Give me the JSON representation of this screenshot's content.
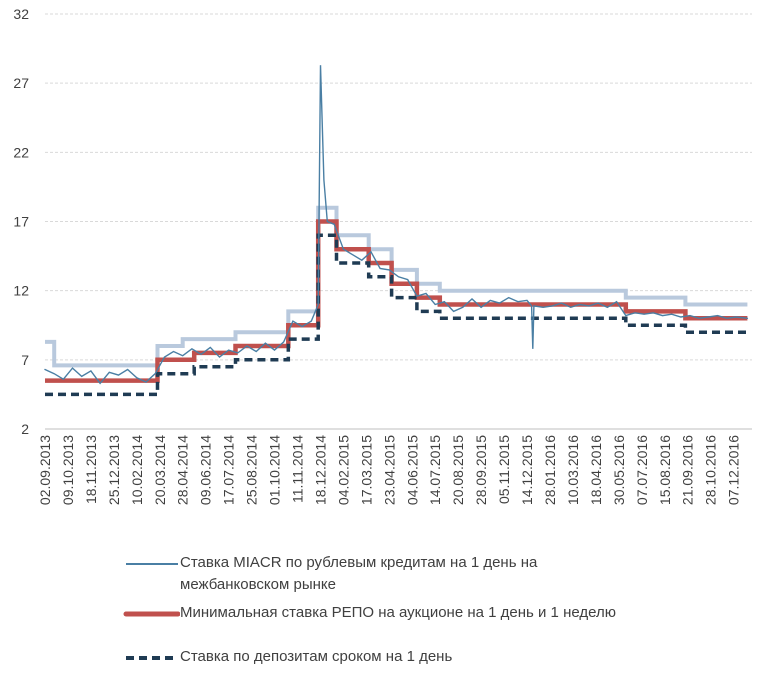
{
  "chart_data": {
    "type": "line",
    "title": "",
    "xlabel": "",
    "ylabel": "",
    "ylim": [
      2,
      32
    ],
    "yticks": [
      2,
      7,
      12,
      17,
      22,
      27,
      32
    ],
    "grid": true,
    "legend_position": "bottom",
    "x_tick_labels": [
      "02.09.2013",
      "09.10.2013",
      "18.11.2013",
      "25.12.2013",
      "10.02.2014",
      "20.03.2014",
      "28.04.2014",
      "09.06.2014",
      "17.07.2014",
      "25.08.2014",
      "01.10.2014",
      "11.11.2014",
      "18.12.2014",
      "04.02.2015",
      "17.03.2015",
      "23.04.2015",
      "04.06.2015",
      "14.07.2015",
      "20.08.2015",
      "28.09.2015",
      "05.11.2015",
      "14.12.2015",
      "28.01.2016",
      "10.03.2016",
      "18.04.2016",
      "30.05.2016",
      "07.07.2016",
      "15.08.2016",
      "21.09.2016",
      "28.10.2016",
      "07.12.2016"
    ],
    "series": [
      {
        "name": "Ставка MIACR по рублевым кредитам на 1 день на межбанковском рынке",
        "color": "#4a7fa4",
        "style": "thin",
        "points": [
          [
            0,
            6.3
          ],
          [
            0.4,
            6.0
          ],
          [
            0.8,
            5.6
          ],
          [
            1.2,
            6.4
          ],
          [
            1.6,
            5.8
          ],
          [
            2.0,
            6.2
          ],
          [
            2.4,
            5.3
          ],
          [
            2.8,
            6.1
          ],
          [
            3.2,
            5.9
          ],
          [
            3.6,
            6.3
          ],
          [
            4.0,
            5.7
          ],
          [
            4.4,
            5.4
          ],
          [
            4.8,
            6.0
          ],
          [
            5.2,
            7.2
          ],
          [
            5.6,
            7.6
          ],
          [
            6.0,
            7.3
          ],
          [
            6.4,
            7.8
          ],
          [
            6.8,
            7.4
          ],
          [
            7.2,
            7.9
          ],
          [
            7.6,
            7.2
          ],
          [
            8.0,
            7.7
          ],
          [
            8.4,
            7.5
          ],
          [
            8.8,
            8.0
          ],
          [
            9.2,
            7.6
          ],
          [
            9.6,
            8.2
          ],
          [
            10.0,
            7.7
          ],
          [
            10.4,
            8.3
          ],
          [
            10.8,
            9.8
          ],
          [
            11.2,
            9.4
          ],
          [
            11.6,
            9.8
          ],
          [
            11.9,
            11.0
          ],
          [
            12.0,
            28.3
          ],
          [
            12.15,
            20.0
          ],
          [
            12.3,
            17.0
          ],
          [
            12.6,
            16.8
          ],
          [
            13.0,
            15.0
          ],
          [
            13.4,
            14.6
          ],
          [
            13.8,
            14.2
          ],
          [
            14.2,
            14.8
          ],
          [
            14.6,
            13.6
          ],
          [
            15.0,
            13.5
          ],
          [
            15.4,
            13.0
          ],
          [
            15.8,
            12.8
          ],
          [
            16.2,
            11.6
          ],
          [
            16.6,
            11.8
          ],
          [
            17.0,
            11.0
          ],
          [
            17.4,
            11.2
          ],
          [
            17.8,
            10.5
          ],
          [
            18.2,
            10.8
          ],
          [
            18.6,
            11.4
          ],
          [
            19.0,
            10.8
          ],
          [
            19.4,
            11.3
          ],
          [
            19.8,
            11.1
          ],
          [
            20.2,
            11.5
          ],
          [
            20.6,
            11.2
          ],
          [
            21.0,
            11.3
          ],
          [
            21.2,
            10.9
          ],
          [
            21.25,
            7.8
          ],
          [
            21.3,
            10.9
          ],
          [
            21.7,
            10.8
          ],
          [
            22.1,
            10.9
          ],
          [
            22.5,
            11.1
          ],
          [
            22.9,
            10.8
          ],
          [
            23.3,
            11.0
          ],
          [
            23.7,
            10.9
          ],
          [
            24.1,
            11.1
          ],
          [
            24.5,
            10.8
          ],
          [
            24.9,
            11.2
          ],
          [
            25.3,
            10.2
          ],
          [
            25.7,
            10.4
          ],
          [
            26.1,
            10.3
          ],
          [
            26.5,
            10.4
          ],
          [
            26.9,
            10.2
          ],
          [
            27.3,
            10.3
          ],
          [
            27.7,
            10.1
          ],
          [
            28.1,
            10.2
          ],
          [
            28.5,
            10.0
          ],
          [
            28.9,
            10.1
          ],
          [
            29.3,
            10.2
          ],
          [
            29.7,
            10.0
          ],
          [
            30.1,
            10.1
          ],
          [
            30.6,
            10.0
          ]
        ]
      },
      {
        "name": "Минимальная ставка РЕПО на аукционе на 1 день и 1 неделю",
        "color": "#c0504d",
        "style": "thick",
        "points": [
          [
            0,
            5.5
          ],
          [
            4.9,
            5.5
          ],
          [
            4.9,
            7.0
          ],
          [
            6.5,
            7.0
          ],
          [
            6.5,
            7.5
          ],
          [
            8.3,
            7.5
          ],
          [
            8.3,
            8.0
          ],
          [
            10.6,
            8.0
          ],
          [
            10.6,
            9.5
          ],
          [
            11.9,
            9.5
          ],
          [
            11.9,
            17.0
          ],
          [
            12.7,
            17.0
          ],
          [
            12.7,
            15.0
          ],
          [
            14.1,
            15.0
          ],
          [
            14.1,
            14.0
          ],
          [
            15.1,
            14.0
          ],
          [
            15.1,
            12.5
          ],
          [
            16.2,
            12.5
          ],
          [
            16.2,
            11.5
          ],
          [
            17.2,
            11.5
          ],
          [
            17.2,
            11.0
          ],
          [
            25.3,
            11.0
          ],
          [
            25.3,
            10.5
          ],
          [
            27.9,
            10.5
          ],
          [
            27.9,
            10.0
          ],
          [
            30.6,
            10.0
          ]
        ]
      },
      {
        "name": "Ставка по депозитам сроком на 1 день",
        "color": "#1f3b53",
        "style": "dashed",
        "points": [
          [
            0,
            4.5
          ],
          [
            4.9,
            4.5
          ],
          [
            4.9,
            6.0
          ],
          [
            6.5,
            6.0
          ],
          [
            6.5,
            6.5
          ],
          [
            8.3,
            6.5
          ],
          [
            8.3,
            7.0
          ],
          [
            10.6,
            7.0
          ],
          [
            10.6,
            8.5
          ],
          [
            11.9,
            8.5
          ],
          [
            11.9,
            16.0
          ],
          [
            12.7,
            16.0
          ],
          [
            12.7,
            14.0
          ],
          [
            14.1,
            14.0
          ],
          [
            14.1,
            13.0
          ],
          [
            15.1,
            13.0
          ],
          [
            15.1,
            11.5
          ],
          [
            16.2,
            11.5
          ],
          [
            16.2,
            10.5
          ],
          [
            17.2,
            10.5
          ],
          [
            17.2,
            10.0
          ],
          [
            25.3,
            10.0
          ],
          [
            25.3,
            9.5
          ],
          [
            27.9,
            9.5
          ],
          [
            27.9,
            9.0
          ],
          [
            30.6,
            9.0
          ]
        ]
      },
      {
        "name": "",
        "color": "#b9c9dd",
        "style": "band",
        "points": [
          [
            0,
            8.3
          ],
          [
            0.4,
            8.3
          ],
          [
            0.4,
            6.6
          ],
          [
            4.9,
            6.6
          ],
          [
            4.9,
            8.0
          ],
          [
            6.0,
            8.0
          ],
          [
            6.0,
            8.5
          ],
          [
            8.3,
            8.5
          ],
          [
            8.3,
            9.0
          ],
          [
            10.6,
            9.0
          ],
          [
            10.6,
            10.5
          ],
          [
            11.9,
            10.5
          ],
          [
            11.9,
            18.0
          ],
          [
            12.7,
            18.0
          ],
          [
            12.7,
            16.0
          ],
          [
            14.1,
            16.0
          ],
          [
            14.1,
            15.0
          ],
          [
            15.1,
            15.0
          ],
          [
            15.1,
            13.5
          ],
          [
            16.2,
            13.5
          ],
          [
            16.2,
            12.5
          ],
          [
            17.2,
            12.5
          ],
          [
            17.2,
            12.0
          ],
          [
            25.3,
            12.0
          ],
          [
            25.3,
            11.5
          ],
          [
            27.9,
            11.5
          ],
          [
            27.9,
            11.0
          ],
          [
            30.6,
            11.0
          ]
        ]
      }
    ]
  },
  "legend": {
    "items": [
      {
        "label_line1": "Ставка MIACR по рублевым кредитам на 1 день на",
        "label_line2": "межбанковском рынке"
      },
      {
        "label_line1": "Минимальная ставка РЕПО на аукционе на 1 день и 1 неделю"
      },
      {
        "label_line1": "Ставка по депозитам сроком на 1 день"
      }
    ]
  }
}
